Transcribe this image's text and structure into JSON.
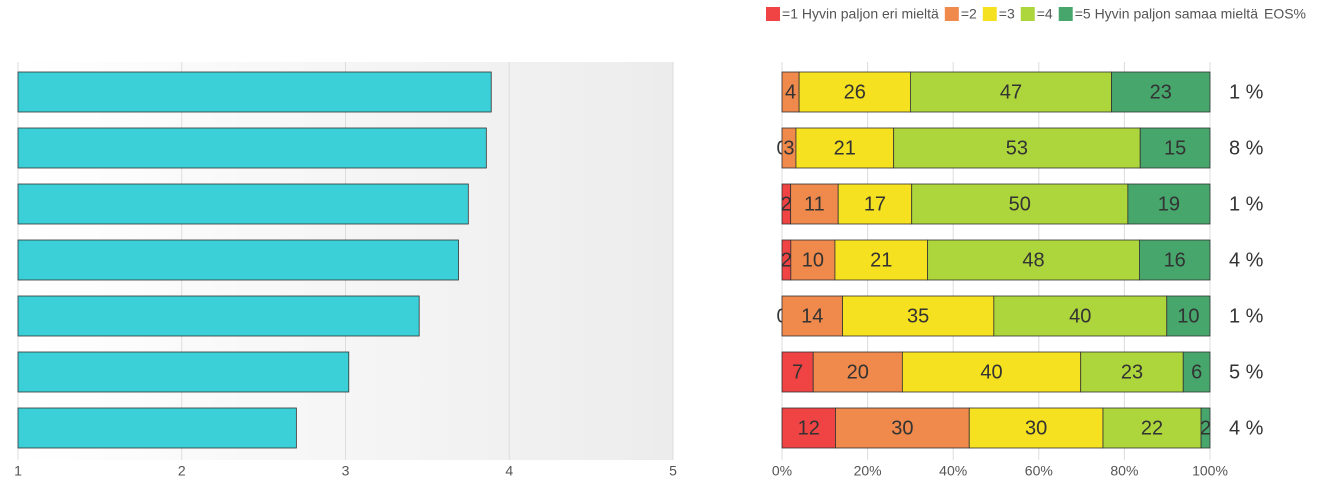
{
  "chart_data": [
    {
      "type": "hbar",
      "categories": [
        null,
        null,
        null,
        null,
        null,
        null,
        null
      ],
      "values": [
        3.89,
        3.86,
        3.75,
        3.69,
        3.45,
        3.02,
        2.7
      ],
      "color": "#3bd0d8",
      "xlim": [
        1,
        5
      ],
      "xticks": [
        1,
        2,
        3,
        4,
        5
      ],
      "grid": true
    },
    {
      "type": "stacked_hbar",
      "categories": [
        null,
        null,
        null,
        null,
        null,
        null,
        null
      ],
      "series": [
        {
          "name": "=1 Hyvin paljon eri mieltä",
          "color": "#f04343",
          "values": [
            null,
            0,
            2,
            2,
            0,
            7,
            12
          ]
        },
        {
          "name": "=2",
          "color": "#f0894c",
          "values": [
            4,
            3,
            11,
            10,
            14,
            20,
            30
          ]
        },
        {
          "name": "=3",
          "color": "#f5e11f",
          "values": [
            26,
            21,
            17,
            21,
            35,
            40,
            30
          ]
        },
        {
          "name": "=4",
          "color": "#add53c",
          "values": [
            47,
            53,
            50,
            48,
            40,
            23,
            22
          ]
        },
        {
          "name": "=5 Hyvin paljon samaa mieltä",
          "color": "#46a66c",
          "values": [
            23,
            15,
            19,
            16,
            10,
            6,
            2
          ]
        }
      ],
      "eos": {
        "name": "EOS%",
        "values": [
          1,
          8,
          1,
          4,
          1,
          5,
          4
        ],
        "value_labels": [
          "1 %",
          "8 %",
          "1 %",
          "4 %",
          "1 %",
          "5 %",
          "4 %"
        ]
      },
      "xlim": [
        0,
        100
      ],
      "xticks": [
        {
          "value": 0,
          "label": "0%"
        },
        {
          "value": 20,
          "label": "20%"
        },
        {
          "value": 40,
          "label": "40%"
        },
        {
          "value": 60,
          "label": "60%"
        },
        {
          "value": 80,
          "label": "80%"
        },
        {
          "value": 100,
          "label": "100%"
        }
      ],
      "grid": true,
      "legend": "top-right"
    }
  ]
}
